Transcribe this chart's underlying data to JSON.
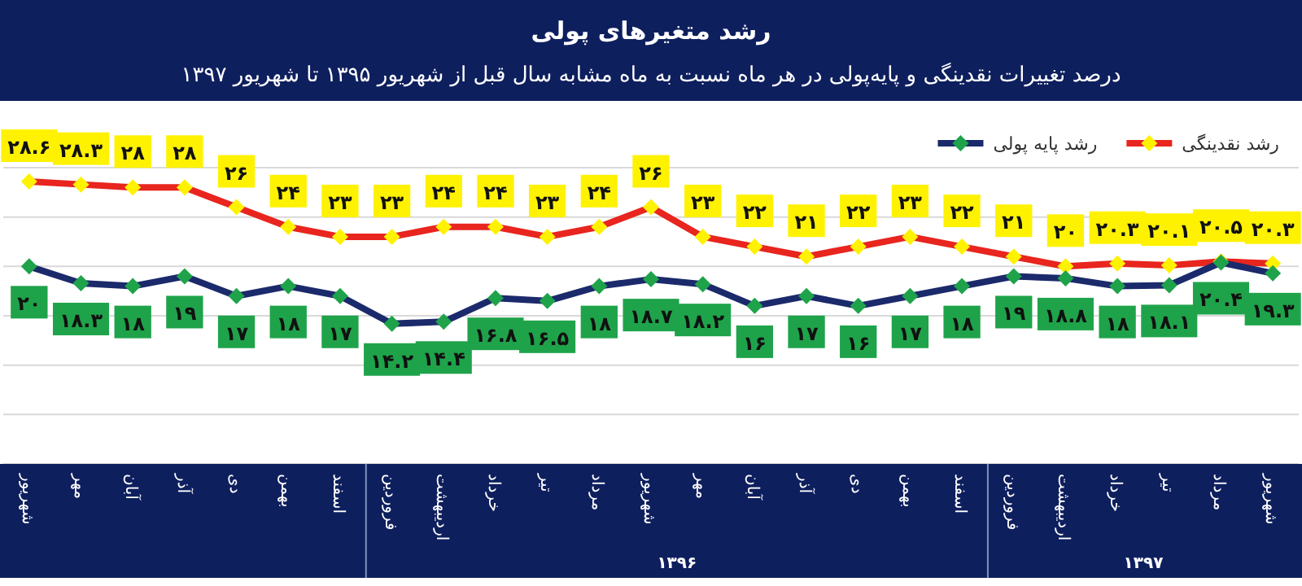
{
  "chart_data": {
    "type": "line",
    "title": "رشد متغیرهای پولی",
    "subtitle": "درصد تغییرات نقدینگی و پایه‌پولی در هر ماه نسبت به ماه مشابه سال قبل از شهریور ۱۳۹۵ تا شهریور ۱۳۹۷",
    "categories": [
      "شهریور",
      "مهر",
      "آبان",
      "آذر",
      "دی",
      "بهمن",
      "اسفند",
      "فروردین",
      "اردیبهشت",
      "خرداد",
      "تیر",
      "مرداد",
      "شهریور",
      "مهر",
      "آبان",
      "آذر",
      "دی",
      "بهمن",
      "اسفند",
      "فروردین",
      "اردیبهشت",
      "خرداد",
      "تیر",
      "مرداد",
      "شهریور"
    ],
    "series": [
      {
        "name": "رشد نقدینگی",
        "color": "#e8251e",
        "values": [
          28.6,
          28.3,
          28,
          28,
          26,
          24,
          23,
          23,
          24,
          24,
          23,
          24,
          26,
          23,
          22,
          21,
          22,
          23,
          22,
          21,
          20,
          20.3,
          20.1,
          20.5,
          20.3
        ],
        "value_labels": [
          "۲۸.۶",
          "۲۸.۳",
          "۲۸",
          "۲۸",
          "۲۶",
          "۲۴",
          "۲۳",
          "۲۳",
          "۲۴",
          "۲۴",
          "۲۳",
          "۲۴",
          "۲۶",
          "۲۳",
          "۲۲",
          "۲۱",
          "۲۲",
          "۲۳",
          "۲۲",
          "۲۱",
          "۲۰",
          "۲۰.۳",
          "۲۰.۱",
          "۲۰.۵",
          "۲۰.۳"
        ]
      },
      {
        "name": "رشد پایه پولی",
        "color": "#1b2a6b",
        "values": [
          20,
          18.3,
          18,
          19,
          17,
          18,
          17,
          14.2,
          14.4,
          16.8,
          16.5,
          18,
          18.7,
          18.2,
          16,
          17,
          16,
          17,
          18,
          19,
          18.8,
          18,
          18.1,
          20.4,
          19.3
        ],
        "value_labels": [
          "۲۰",
          "۱۸.۳",
          "۱۸",
          "۱۹",
          "۱۷",
          "۱۸",
          "۱۷",
          "۱۴.۲",
          "۱۴.۴",
          "۱۶.۸",
          "۱۶.۵",
          "۱۸",
          "۱۸.۷",
          "۱۸.۲",
          "۱۶",
          "۱۷",
          "۱۶",
          "۱۷",
          "۱۸",
          "۱۹",
          "۱۸.۸",
          "۱۸",
          "۱۸.۱",
          "۲۰.۴",
          "۱۹.۳"
        ]
      }
    ],
    "ylim": [
      0,
      30
    ],
    "yticks": [
      {
        "value": 0,
        "label": null
      },
      {
        "value": 5,
        "label": null
      },
      {
        "value": 10,
        "label": null
      },
      {
        "value": 15,
        "label": null
      },
      {
        "value": 20,
        "label": null
      },
      {
        "value": 25,
        "label": null
      },
      {
        "value": 30,
        "label": null
      }
    ],
    "grid": "y",
    "legend": "top right",
    "marker": "diamond",
    "line_style": "solid",
    "annotations": [
      "۱۳۹۶",
      "۱۳۹۷"
    ]
  }
}
